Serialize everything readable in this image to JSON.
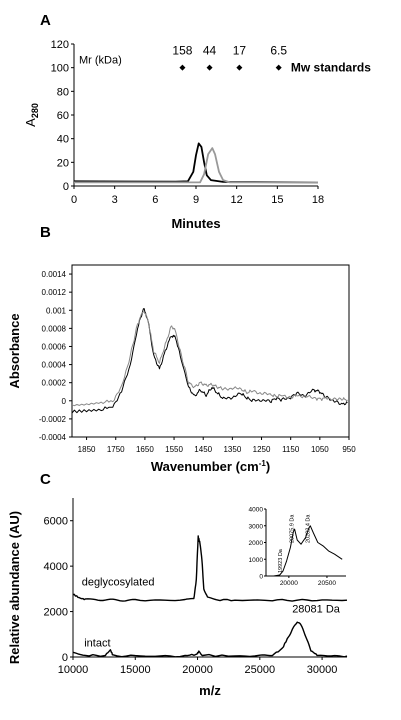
{
  "chart_data": [
    {
      "panel": "A",
      "type": "line",
      "title": "",
      "xlabel": "Minutes",
      "ylabel": "A280",
      "xlim": [
        0,
        18
      ],
      "ylim": [
        0,
        120
      ],
      "xticks": [
        0,
        3,
        6,
        9,
        12,
        15,
        18
      ],
      "yticks": [
        0,
        20,
        40,
        60,
        80,
        100,
        120
      ],
      "markers_label": "Mw standards",
      "mr_label": "Mr (kDa)",
      "markers": [
        {
          "label": "158",
          "x": 8.0,
          "y": 100
        },
        {
          "label": "44",
          "x": 10.0,
          "y": 100
        },
        {
          "label": "17",
          "x": 12.2,
          "y": 100
        },
        {
          "label": "6.5",
          "x": 15.1,
          "y": 100
        }
      ],
      "series": [
        {
          "color": "#000000",
          "points": [
            [
              0,
              4
            ],
            [
              7.5,
              3.6
            ],
            [
              8.4,
              4
            ],
            [
              8.8,
              12
            ],
            [
              9.0,
              26
            ],
            [
              9.2,
              36
            ],
            [
              9.4,
              33
            ],
            [
              9.6,
              20
            ],
            [
              9.8,
              9
            ],
            [
              10.1,
              5
            ],
            [
              11,
              3.5
            ],
            [
              18,
              3
            ]
          ]
        },
        {
          "color": "#999999",
          "points": [
            [
              0,
              3
            ],
            [
              9.3,
              3
            ],
            [
              9.6,
              10
            ],
            [
              9.9,
              27
            ],
            [
              10.2,
              32
            ],
            [
              10.4,
              27
            ],
            [
              10.7,
              12
            ],
            [
              11.0,
              5
            ],
            [
              11.5,
              3
            ],
            [
              18,
              3
            ]
          ]
        }
      ]
    },
    {
      "panel": "B",
      "type": "line",
      "title": "",
      "xlabel": "Wavenumber (cm-1)",
      "ylabel": "Absorbance",
      "xlim": [
        1900,
        950
      ],
      "ylim": [
        -0.0004,
        0.0015
      ],
      "xticks": [
        1850,
        1750,
        1650,
        1550,
        1450,
        1350,
        1250,
        1150,
        1050,
        950
      ],
      "ytick_labels": [
        "-0.0004",
        "-0.0002",
        "0",
        "0.0002",
        "0.0004",
        "0.0006",
        "0.0008",
        "0.001",
        "0.0012",
        "0.0014"
      ],
      "series": [
        {
          "color": "#000000",
          "points": [
            [
              1900,
              -0.00012
            ],
            [
              1850,
              -0.00011
            ],
            [
              1800,
              -0.0001
            ],
            [
              1760,
              -6e-05
            ],
            [
              1730,
              0.0001
            ],
            [
              1700,
              0.0004
            ],
            [
              1675,
              0.0008
            ],
            [
              1655,
              0.00102
            ],
            [
              1640,
              0.0009
            ],
            [
              1620,
              0.0005
            ],
            [
              1600,
              0.00035
            ],
            [
              1580,
              0.00055
            ],
            [
              1560,
              0.00072
            ],
            [
              1545,
              0.0007
            ],
            [
              1525,
              0.00045
            ],
            [
              1500,
              0.00015
            ],
            [
              1480,
              5e-05
            ],
            [
              1460,
              0.00012
            ],
            [
              1440,
              6e-05
            ],
            [
              1420,
              0.00015
            ],
            [
              1400,
              8e-05
            ],
            [
              1380,
              2e-05
            ],
            [
              1350,
              4e-05
            ],
            [
              1320,
              8e-05
            ],
            [
              1300,
              3e-05
            ],
            [
              1280,
              0.0
            ],
            [
              1250,
              1e-05
            ],
            [
              1220,
              -1e-05
            ],
            [
              1200,
              3e-05
            ],
            [
              1180,
              1e-05
            ],
            [
              1150,
              4e-05
            ],
            [
              1130,
              8e-05
            ],
            [
              1100,
              6e-05
            ],
            [
              1070,
              0.00012
            ],
            [
              1050,
              0.0001
            ],
            [
              1030,
              4e-05
            ],
            [
              1000,
              0.0
            ],
            [
              975,
              -4e-05
            ],
            [
              955,
              -2e-05
            ]
          ]
        },
        {
          "color": "#888888",
          "points": [
            [
              1900,
              -5e-05
            ],
            [
              1850,
              -4e-05
            ],
            [
              1800,
              -2e-05
            ],
            [
              1760,
              0.0
            ],
            [
              1730,
              0.00015
            ],
            [
              1700,
              0.0005
            ],
            [
              1675,
              0.00085
            ],
            [
              1655,
              0.001
            ],
            [
              1640,
              0.0009
            ],
            [
              1620,
              0.00055
            ],
            [
              1600,
              0.00042
            ],
            [
              1580,
              0.00062
            ],
            [
              1560,
              0.00082
            ],
            [
              1548,
              0.0008
            ],
            [
              1525,
              0.0005
            ],
            [
              1500,
              0.0002
            ],
            [
              1480,
              0.00015
            ],
            [
              1460,
              0.0002
            ],
            [
              1440,
              0.00017
            ],
            [
              1420,
              0.00018
            ],
            [
              1400,
              0.00015
            ],
            [
              1380,
              0.00013
            ],
            [
              1350,
              0.00014
            ],
            [
              1320,
              0.00013
            ],
            [
              1300,
              9e-05
            ],
            [
              1280,
              0.00011
            ],
            [
              1250,
              8e-05
            ],
            [
              1220,
              7e-05
            ],
            [
              1200,
              5e-05
            ],
            [
              1180,
              6e-05
            ],
            [
              1150,
              4e-05
            ],
            [
              1130,
              6e-05
            ],
            [
              1100,
              5e-05
            ],
            [
              1070,
              3e-05
            ],
            [
              1050,
              2e-05
            ],
            [
              1030,
              3e-05
            ],
            [
              1000,
              2e-05
            ],
            [
              975,
              2e-05
            ],
            [
              955,
              1e-05
            ]
          ]
        }
      ]
    },
    {
      "panel": "C",
      "type": "line",
      "title": "",
      "xlabel": "m/z",
      "ylabel": "Relative abundance (AU)",
      "xlim": [
        10000,
        32000
      ],
      "ylim": [
        0,
        7000
      ],
      "xticks": [
        10000,
        15000,
        20000,
        25000,
        30000
      ],
      "yticks": [
        0,
        2000,
        4000,
        6000
      ],
      "annotations": [
        {
          "text": "deglycosylated",
          "x": 10700,
          "y": 3150
        },
        {
          "text": "intact",
          "x": 10900,
          "y": 470
        },
        {
          "text": "28081 Da",
          "x": 27600,
          "y": 1950
        }
      ],
      "series": [
        {
          "name": "deglycosylated",
          "color": "#000000",
          "points": [
            [
              10000,
              2750
            ],
            [
              10500,
              2600
            ],
            [
              11000,
              2550
            ],
            [
              12000,
              2520
            ],
            [
              13000,
              2510
            ],
            [
              14000,
              2500
            ],
            [
              15000,
              2500
            ],
            [
              17000,
              2500
            ],
            [
              19000,
              2500
            ],
            [
              19700,
              2550
            ],
            [
              19900,
              3400
            ],
            [
              20050,
              5300
            ],
            [
              20200,
              5000
            ],
            [
              20350,
              4300
            ],
            [
              20500,
              3000
            ],
            [
              20800,
              2600
            ],
            [
              21500,
              2520
            ],
            [
              23000,
              2500
            ],
            [
              26000,
              2500
            ],
            [
              28000,
              2500
            ],
            [
              30000,
              2500
            ],
            [
              32000,
              2500
            ]
          ]
        },
        {
          "name": "intact",
          "color": "#000000",
          "points": [
            [
              10000,
              200
            ],
            [
              11000,
              80
            ],
            [
              12500,
              50
            ],
            [
              13000,
              300
            ],
            [
              13200,
              60
            ],
            [
              15000,
              40
            ],
            [
              17000,
              40
            ],
            [
              19000,
              40
            ],
            [
              19900,
              120
            ],
            [
              20100,
              250
            ],
            [
              20400,
              80
            ],
            [
              23000,
              40
            ],
            [
              25000,
              50
            ],
            [
              26000,
              100
            ],
            [
              26800,
              350
            ],
            [
              27300,
              900
            ],
            [
              27700,
              1300
            ],
            [
              28000,
              1550
            ],
            [
              28300,
              1400
            ],
            [
              28700,
              900
            ],
            [
              29100,
              300
            ],
            [
              29600,
              80
            ],
            [
              31000,
              40
            ],
            [
              32000,
              40
            ]
          ]
        }
      ],
      "inset": {
        "xlim": [
          19700,
          20750
        ],
        "ylim": [
          0,
          4000
        ],
        "xticks": [
          20000,
          20500
        ],
        "yticks": [
          0,
          1000,
          2000,
          3000,
          4000
        ],
        "annotations": [
          {
            "text": "19923 Da",
            "x": 19923
          },
          {
            "text": "20075.9 Da",
            "x": 20076
          },
          {
            "text": "20282.4 Da",
            "x": 20282
          }
        ],
        "series": [
          {
            "color": "#000000",
            "points": [
              [
                19800,
                0
              ],
              [
                19880,
                60
              ],
              [
                19923,
                300
              ],
              [
                19970,
                900
              ],
              [
                20020,
                1700
              ],
              [
                20060,
                2650
              ],
              [
                20076,
                2800
              ],
              [
                20110,
                2150
              ],
              [
                20160,
                1900
              ],
              [
                20220,
                2300
              ],
              [
                20260,
                2850
              ],
              [
                20282,
                3000
              ],
              [
                20320,
                2600
              ],
              [
                20380,
                2000
              ],
              [
                20450,
                1800
              ],
              [
                20520,
                1500
              ],
              [
                20600,
                1300
              ],
              [
                20700,
                1000
              ]
            ]
          }
        ]
      }
    }
  ],
  "panels": {
    "a_label": "A",
    "b_label": "B",
    "c_label": "C"
  }
}
